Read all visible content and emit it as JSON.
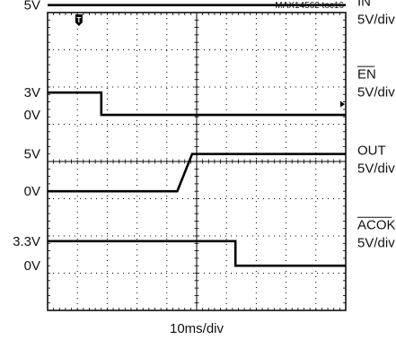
{
  "chart_data": {
    "type": "line",
    "title": "",
    "figure_id": "MAX14562 toc16",
    "xlabel": "10ms/div",
    "x_divisions": 10,
    "y_divisions": 8,
    "grid": true,
    "trigger_marker": "T",
    "series": [
      {
        "name": "IN",
        "scale": "5V/div",
        "level_labels": [
          "5V"
        ],
        "ground_div": 7.2,
        "points": [
          [
            0,
            1
          ],
          [
            10,
            1
          ]
        ]
      },
      {
        "name": "EN",
        "overline": true,
        "scale": "5V/div",
        "level_labels": [
          "3V",
          "0V"
        ],
        "ground_div": 5.25,
        "points": [
          [
            0,
            0.6
          ],
          [
            1.8,
            0.6
          ],
          [
            1.8,
            0
          ],
          [
            10,
            0
          ]
        ]
      },
      {
        "name": "OUT",
        "scale": "5V/div",
        "level_labels": [
          "5V",
          "0V"
        ],
        "ground_div": 3.2,
        "points": [
          [
            0,
            0
          ],
          [
            4.35,
            0
          ],
          [
            4.85,
            1
          ],
          [
            10,
            1
          ]
        ]
      },
      {
        "name": "ACOK",
        "overline": true,
        "scale": "5V/div",
        "level_labels": [
          "3.3V",
          "0V"
        ],
        "ground_div": 1.2,
        "points": [
          [
            0,
            0.66
          ],
          [
            6.3,
            0.66
          ],
          [
            6.3,
            0
          ],
          [
            10,
            0
          ]
        ]
      }
    ]
  }
}
